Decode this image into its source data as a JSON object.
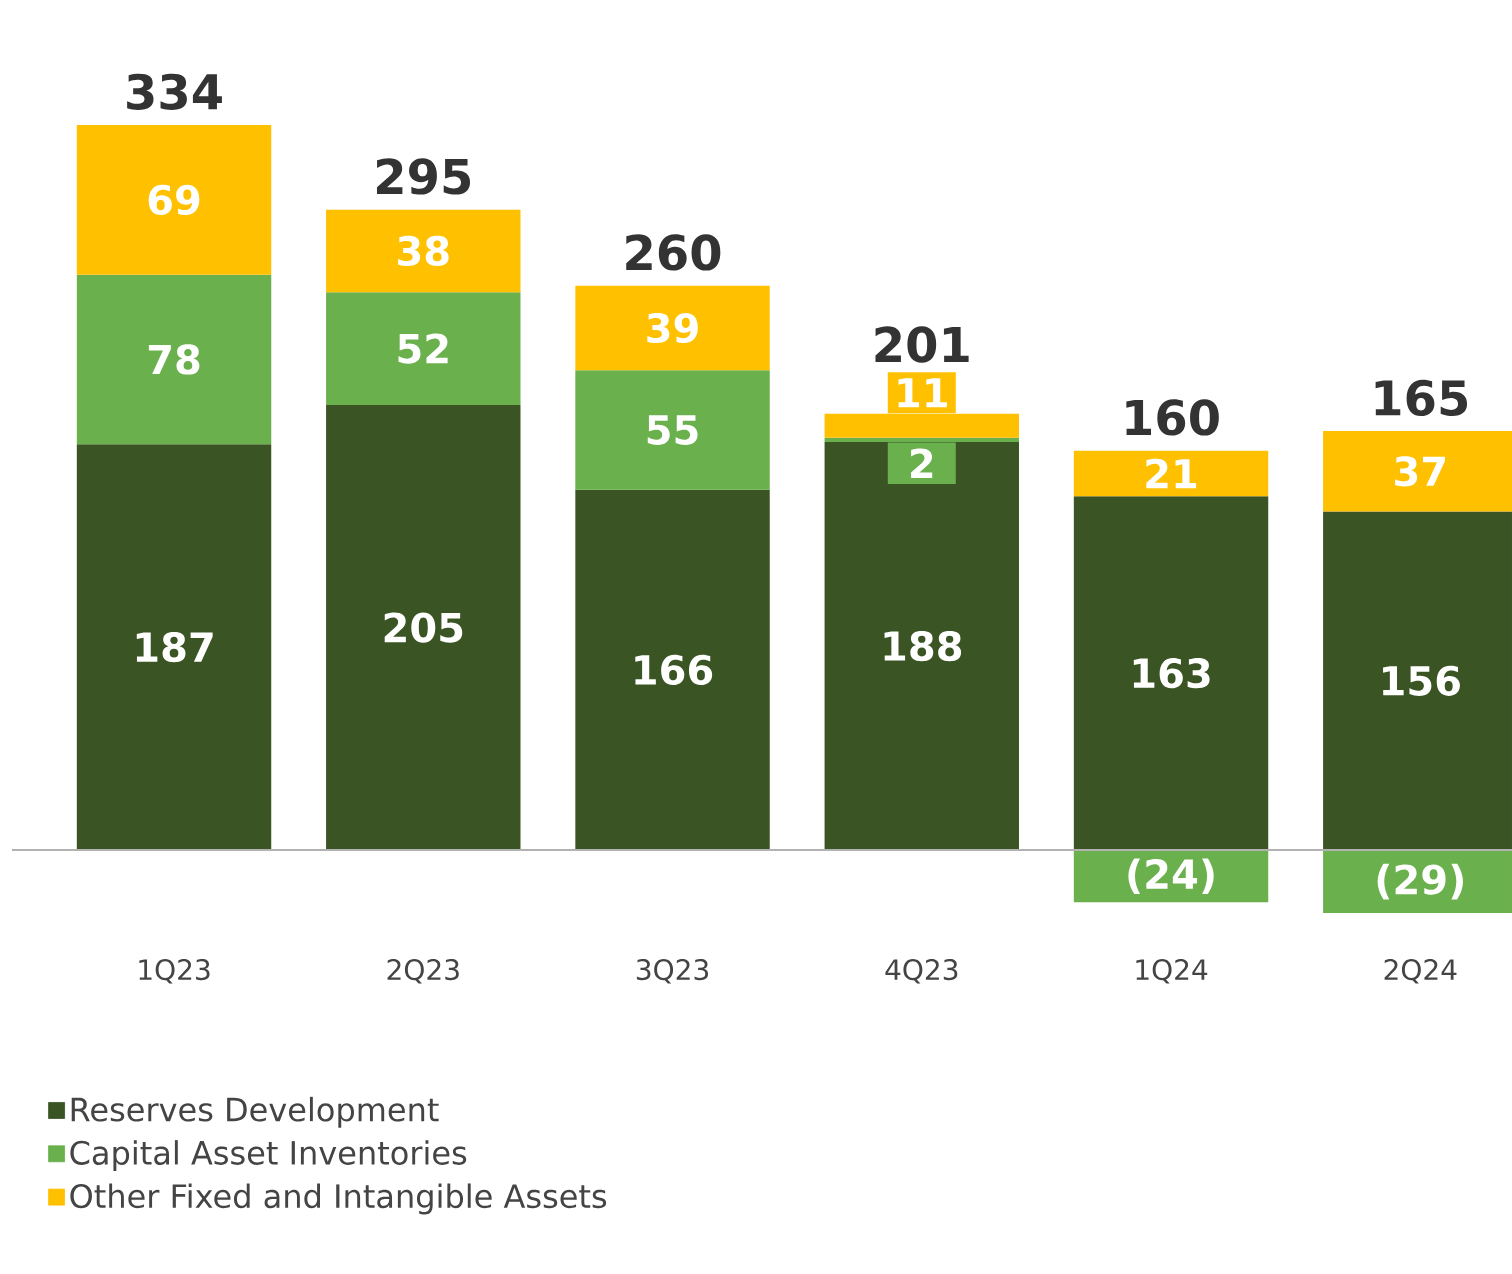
{
  "chart_data": {
    "type": "bar",
    "stacked": true,
    "data_labels": true,
    "legend": "bottom",
    "categories": [
      "1Q23",
      "2Q23",
      "3Q23",
      "4Q23",
      "1Q24",
      "2Q24"
    ],
    "series": [
      {
        "name": "Reserves Development",
        "color": "#3a5424",
        "values": [
          187,
          205,
          166,
          188,
          163,
          156
        ],
        "value_labels": [
          "187",
          "205",
          "166",
          "188",
          "163",
          "156"
        ]
      },
      {
        "name": "Capital Asset Inventories",
        "color": "#6ab04c",
        "values": [
          78,
          52,
          55,
          2,
          -24,
          -29
        ],
        "value_labels": [
          "78",
          "52",
          "55",
          "2",
          "(24)",
          "(29)"
        ]
      },
      {
        "name": "Other Fixed and Intangible Assets",
        "color": "#ffc000",
        "values": [
          69,
          38,
          39,
          11,
          21,
          37
        ],
        "value_labels": [
          "69",
          "38",
          "39",
          "11",
          "21",
          "37"
        ]
      }
    ],
    "totals": [
      "334",
      "295",
      "260",
      "201",
      "160",
      "165"
    ]
  }
}
